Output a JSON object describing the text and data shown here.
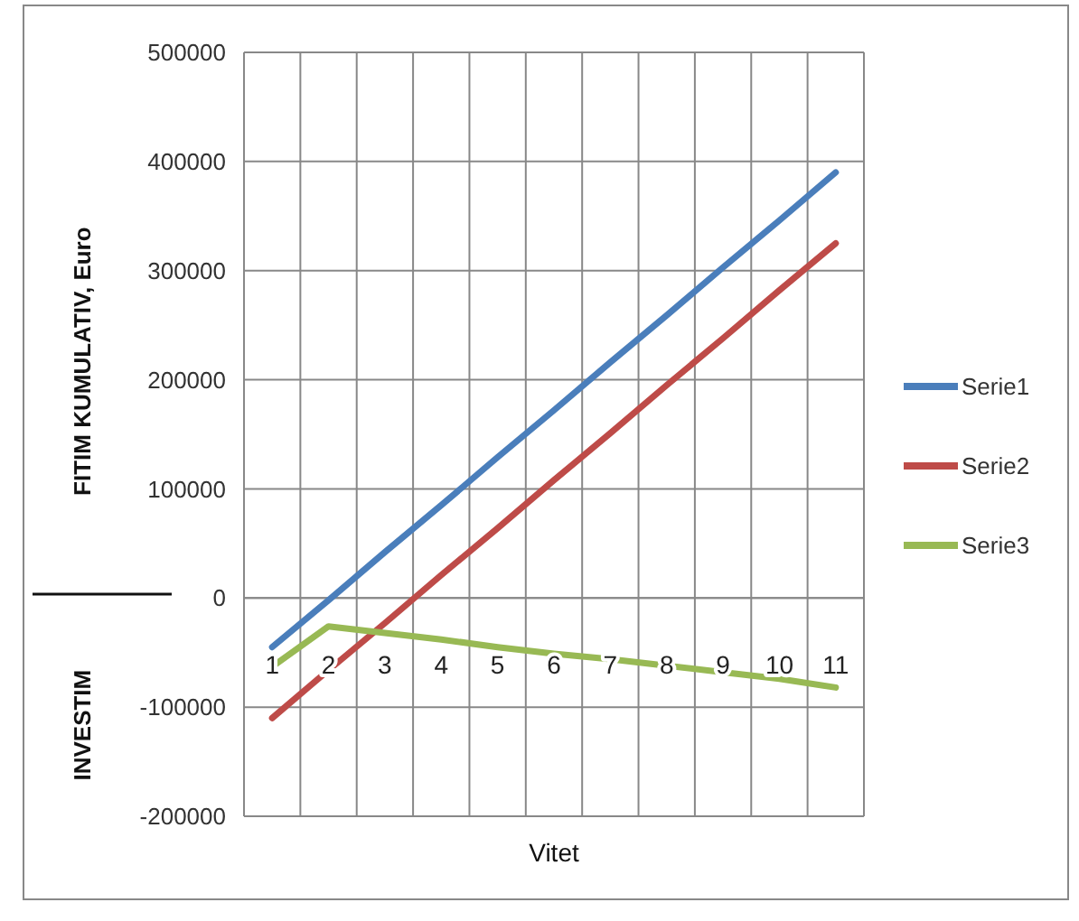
{
  "chart_data": {
    "type": "line",
    "xlabel": "Vitet",
    "ylabel": "FITIM KUMULATIV, Euro",
    "annotations": [
      "INVESTIM"
    ],
    "categories": [
      "1",
      "2",
      "3",
      "4",
      "5",
      "6",
      "7",
      "8",
      "9",
      "10",
      "11"
    ],
    "series": [
      {
        "name": "Serie1",
        "color": "#4a7ebb",
        "values": [
          -45000,
          -2000,
          42000,
          85000,
          129000,
          172000,
          216000,
          259000,
          303000,
          346000,
          390000
        ]
      },
      {
        "name": "Serie2",
        "color": "#be4b48",
        "values": [
          -110000,
          -66000,
          -23000,
          21000,
          64000,
          108000,
          151000,
          195000,
          238000,
          282000,
          325000
        ]
      },
      {
        "name": "Serie3",
        "color": "#98b954",
        "values": [
          -63000,
          -26000,
          -32000,
          -38000,
          -45000,
          -51000,
          -56000,
          -62000,
          -68000,
          -74000,
          -82000
        ]
      }
    ],
    "ylim": [
      -200000,
      500000
    ],
    "yticks": [
      -200000,
      -100000,
      0,
      100000,
      200000,
      300000,
      400000,
      500000
    ],
    "grid": true,
    "legend": "right",
    "marker": "none",
    "line_style": "solid"
  }
}
